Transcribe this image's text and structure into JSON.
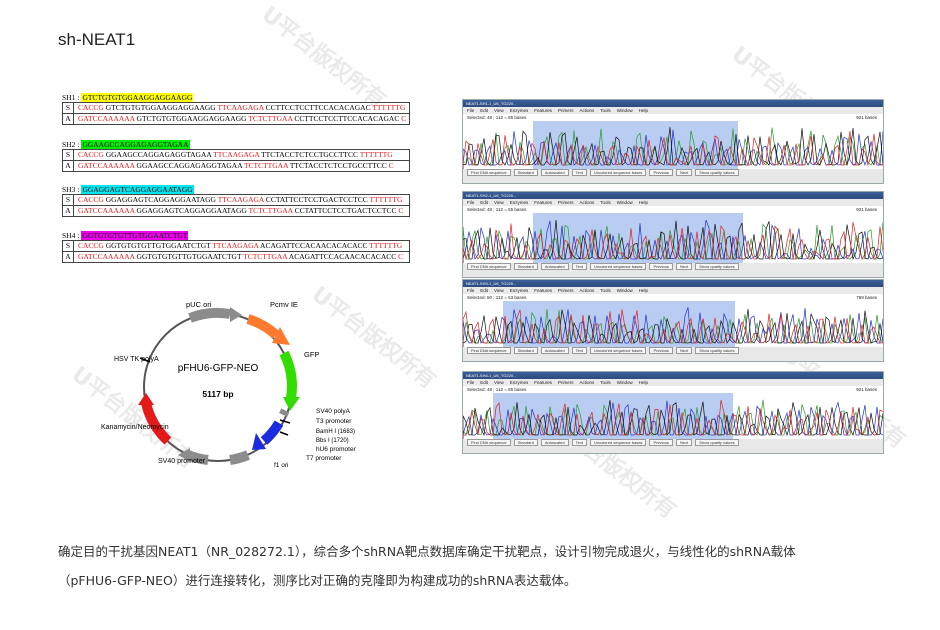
{
  "page_title": "sh-NEAT1",
  "shrna_table": [
    {
      "id": "SH1",
      "sep": ":",
      "target": "GTCTGTGTGGAAGGAGGAAGG",
      "highlight": "#ffff00",
      "rows": [
        {
          "strand": "S",
          "prefix": "CACCG",
          "middle": " GTCTGTGTGGAAGGAGGAAGG ",
          "loop": "TTCAAGAGA",
          "rest": " CCTTCCTCCTTCCACACAGAC ",
          "suffix": "TTTTTTG"
        },
        {
          "strand": "A",
          "prefix": "GATCCAAAAAA",
          "middle": " GTCTGTGTGGAAGGAGGAAGG ",
          "loop": "TCTCTTGAA",
          "rest": " CCTTCCTCCTTCCACACAGAC ",
          "suffix": "C"
        }
      ]
    },
    {
      "id": "SH2",
      "sep": ":",
      "target": "GGAAGCCAGGAGAGGTAGAA",
      "highlight": "#00ee00",
      "rows": [
        {
          "strand": "S",
          "prefix": "CACCG",
          "middle": " GGAAGCCAGGAGAGGTAGAA ",
          "loop": "TTCAAGAGA",
          "rest": " TTCTACCTCTCCTGCCTTCC ",
          "suffix": "TTTTTTG"
        },
        {
          "strand": "A",
          "prefix": "GATCCAAAAAA",
          "middle": " GGAAGCCAGGAGAGGTAGAA ",
          "loop": "TCTCTTGAA",
          "rest": " TTCTACCTCTCCTGCCTTCC ",
          "suffix": "C"
        }
      ]
    },
    {
      "id": "SH3",
      "sep": ":",
      "target": "GGAGGAGTCAGGAGGAATAGG",
      "highlight": "#00e5ee",
      "rows": [
        {
          "strand": "S",
          "prefix": "CACCG",
          "middle": " GGAGGAGTCAGGAGGAATAGG ",
          "loop": "TTCAAGAGA",
          "rest": " CCTATTCCTCCTGACTCCTCC ",
          "suffix": "TTTTTTG"
        },
        {
          "strand": "A",
          "prefix": "GATCCAAAAAA",
          "middle": " GGAGGAGTCAGGAGGAATAGG ",
          "loop": "TCTCTTGAA",
          "rest": " CCTATTCCTCCTGACTCCTCC ",
          "suffix": "C"
        }
      ]
    },
    {
      "id": "SH4",
      "sep": ":",
      "target": "GGTGTGTGTTGTGGAATCTGT",
      "highlight": "#ee00ee",
      "rows": [
        {
          "strand": "S",
          "prefix": "CACCG",
          "middle": " GGTGTGTGTTGTGGAATCTGT ",
          "loop": "TTCAAGAGA",
          "rest": " ACAGATTCCACAACACACACC ",
          "suffix": "TTTTTTG"
        },
        {
          "strand": "A",
          "prefix": "GATCCAAAAAA",
          "middle": " GGTGTGTGTTGTGGAATCTGT ",
          "loop": "TCTCTTGAA",
          "rest": " ACAGATTCCACAACACACACC ",
          "suffix": "C"
        }
      ]
    }
  ],
  "plasmid": {
    "name": "pFHU6-GFP-NEO",
    "size": "5117 bp",
    "features": {
      "puc": "pUC ori",
      "pcmv": "Pcmv IE",
      "gfp": "GFP",
      "sv40polya": "SV40 polyA",
      "t3": "T3 promoter",
      "bamh": "BamH I (1683)",
      "bbs": "Bbs I (1720)",
      "hu6": "hU6 promoter",
      "t7": "T7 promoter",
      "f1": "f1 ori",
      "sv40p": "SV40 promoter",
      "kan": "Kanamycin/Neomycin",
      "hsv": "HSV TK polyA"
    }
  },
  "chromatograms": [
    {
      "title": "NEAT1-SH1-1_U6_TG220...",
      "selected": "Selected: 48 ; 112 = 65 bases",
      "bases": "921 bases"
    },
    {
      "title": "NEAT1-SH2-1_U6_TG220...",
      "selected": "Selected: 48 ; 112 = 65 bases",
      "bases": "921 bases"
    },
    {
      "title": "NEAT1-SH3-1_U6_TG220...",
      "selected": "Selected: 50 ; 112 = 63 bases",
      "bases": "759 bases"
    },
    {
      "title": "NEAT1-SH4-1_U6_TG220...",
      "selected": "Selected: 48 ; 112 = 65 bases",
      "bases": "921 bases"
    }
  ],
  "chromo_menu": [
    "File",
    "Edit",
    "View",
    "Enzymes",
    "Features",
    "Primers",
    "Actions",
    "Tools",
    "Window",
    "Help"
  ],
  "chromo_footer": {
    "find": "Find DNA sequence",
    "b1": "Standard",
    "b2": "Autoscaled",
    "b3": "Text",
    "b4": "Uncolored sequence bases",
    "next": "Next",
    "prev": "Previous",
    "show": "Show quality values"
  },
  "watermark": "U平台版权所有",
  "description": {
    "line1": "确定目的干扰基因NEAT1（NR_028272.1），综合多个shRNA靶点数据库确定干扰靶点，设计引物完成退火，与线性化的shRNA载体",
    "line2": "（pFHU6-GFP-NEO）进行连接转化，测序比对正确的克隆即为构建成功的shRNA表达载体。"
  },
  "colors": {
    "loop_red": "#e31b1b",
    "gfp": "#33dd00",
    "pcmv": "#ff7a2e",
    "kan": "#e41a1a",
    "hu6": "#1c2be0",
    "gray": "#8c8c8c",
    "selection": "#b9cdf3"
  }
}
